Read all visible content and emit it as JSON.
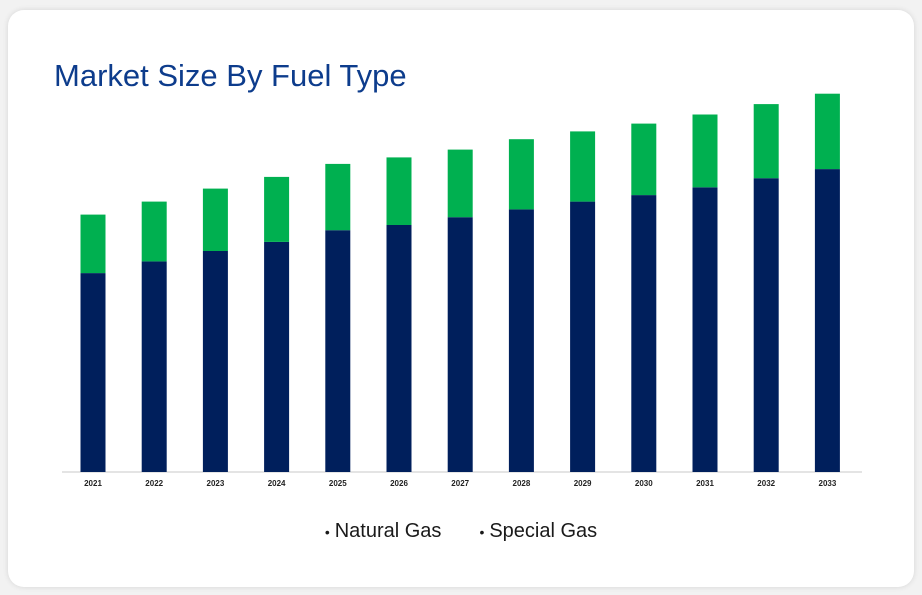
{
  "title": "Market Size By Fuel Type",
  "colors": {
    "title": "#0d3c8c",
    "natural_gas": "#001f5c",
    "special_gas": "#00b050",
    "axis": "#c8c8c8"
  },
  "chart_data": {
    "type": "bar",
    "stacked": true,
    "title": "Market Size By Fuel Type",
    "xlabel": "",
    "ylabel": "",
    "categories": [
      "2021",
      "2022",
      "2023",
      "2024",
      "2025",
      "2026",
      "2027",
      "2028",
      "2029",
      "2030",
      "2031",
      "2032",
      "2033"
    ],
    "series": [
      {
        "name": "Natural Gas",
        "color": "#001f5c",
        "values": [
          153,
          162,
          170,
          177,
          186,
          190,
          196,
          202,
          208,
          213,
          219,
          226,
          233
        ]
      },
      {
        "name": "Special Gas",
        "color": "#00b050",
        "values": [
          45,
          46,
          48,
          50,
          51,
          52,
          52,
          54,
          54,
          55,
          56,
          57,
          58
        ]
      }
    ],
    "ylim": [
      0,
      300
    ],
    "grid": false,
    "legend_position": "bottom-center"
  }
}
